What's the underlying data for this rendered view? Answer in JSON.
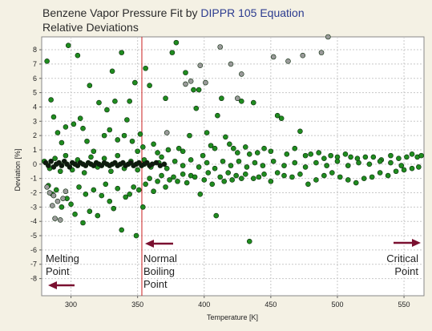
{
  "chart_data": {
    "type": "scatter",
    "title_part1": "Benzene Vapor Pressure Fit by ",
    "title_part2": "DIPPR 105 Equation",
    "subtitle": "Relative Deviations",
    "xlabel": "Temperature [K]",
    "ylabel": "Deviation [%]",
    "xlim": [
      278,
      565
    ],
    "ylim": [
      -9.2,
      8.9
    ],
    "xticks": [
      300,
      350,
      400,
      450,
      500,
      550
    ],
    "yticks": [
      8,
      7,
      6,
      5,
      4,
      3,
      2,
      1,
      0,
      -1,
      -2,
      -3,
      -4,
      -5,
      -6,
      -7,
      -8
    ],
    "grid": true,
    "vline_x": 353.2,
    "annotations": [
      {
        "lines": [
          "Melting",
          "Point"
        ],
        "arrow": "left"
      },
      {
        "lines": [
          "Normal",
          "Boiling",
          "Point"
        ],
        "arrow": "left"
      },
      {
        "lines": [
          "Critical",
          "Point"
        ],
        "arrow": "right"
      }
    ],
    "series": [
      {
        "color": "#1f8c1f",
        "points": [
          [
            282,
            7.2
          ],
          [
            285,
            4.5
          ],
          [
            287,
            3.3
          ],
          [
            290,
            2.2
          ],
          [
            293,
            1.5
          ],
          [
            296,
            2.6
          ],
          [
            298,
            8.3
          ],
          [
            302,
            2.8
          ],
          [
            305,
            7.6
          ],
          [
            307,
            3.2
          ],
          [
            309,
            2.5
          ],
          [
            312,
            1.6
          ],
          [
            314,
            5.5
          ],
          [
            317,
            0.9
          ],
          [
            321,
            4.3
          ],
          [
            325,
            2.0
          ],
          [
            327,
            3.8
          ],
          [
            329,
            2.4
          ],
          [
            331,
            6.5
          ],
          [
            333,
            4.4
          ],
          [
            335,
            1.7
          ],
          [
            338,
            7.8
          ],
          [
            340,
            2.0
          ],
          [
            342,
            3.1
          ],
          [
            344,
            4.4
          ],
          [
            346,
            1.6
          ],
          [
            348,
            5.7
          ],
          [
            350,
            0.9
          ],
          [
            352,
            2.1
          ],
          [
            354,
            1.2
          ],
          [
            356,
            6.7
          ],
          [
            359,
            5.5
          ],
          [
            362,
            1.4
          ],
          [
            365,
            0.8
          ],
          [
            368,
            0.5
          ],
          [
            371,
            4.6
          ],
          [
            373,
            1.0
          ],
          [
            376,
            7.8
          ],
          [
            379,
            8.5
          ],
          [
            381,
            1.1
          ],
          [
            384,
            0.9
          ],
          [
            386,
            6.4
          ],
          [
            389,
            2.0
          ],
          [
            392,
            5.2
          ],
          [
            394,
            3.9
          ],
          [
            396,
            5.2
          ],
          [
            399,
            0.6
          ],
          [
            402,
            2.2
          ],
          [
            405,
            1.3
          ],
          [
            408,
            1.1
          ],
          [
            410,
            3.4
          ],
          [
            413,
            4.6
          ],
          [
            416,
            1.9
          ],
          [
            419,
            1.4
          ],
          [
            422,
            1.1
          ],
          [
            425,
            0.8
          ],
          [
            428,
            4.4
          ],
          [
            431,
            1.2
          ],
          [
            434,
            0.7
          ],
          [
            437,
            4.3
          ],
          [
            440,
            0.8
          ],
          [
            445,
            1.1
          ],
          [
            450,
            0.9
          ],
          [
            455,
            3.4
          ],
          [
            458,
            3.2
          ],
          [
            462,
            0.7
          ],
          [
            468,
            1.1
          ],
          [
            472,
            2.3
          ],
          [
            476,
            0.6
          ],
          [
            480,
            0.7
          ],
          [
            486,
            0.8
          ],
          [
            490,
            0.4
          ],
          [
            495,
            0.6
          ],
          [
            500,
            0.5
          ],
          [
            506,
            0.7
          ],
          [
            510,
            0.5
          ],
          [
            515,
            0.4
          ],
          [
            521,
            0.5
          ],
          [
            527,
            0.5
          ],
          [
            533,
            0.3
          ],
          [
            540,
            0.6
          ],
          [
            546,
            0.4
          ],
          [
            552,
            0.5
          ],
          [
            556,
            0.7
          ],
          [
            560,
            0.5
          ],
          [
            563,
            0.6
          ],
          [
            283,
            -1.5
          ],
          [
            286,
            -2.1
          ],
          [
            289,
            -1.8
          ],
          [
            293,
            -3.0
          ],
          [
            297,
            -2.4
          ],
          [
            300,
            -2.8
          ],
          [
            303,
            -3.5
          ],
          [
            306,
            -1.6
          ],
          [
            309,
            -4.1
          ],
          [
            311,
            -2.1
          ],
          [
            314,
            -3.3
          ],
          [
            317,
            -1.8
          ],
          [
            320,
            -3.6
          ],
          [
            323,
            -2.2
          ],
          [
            326,
            -1.4
          ],
          [
            329,
            -2.6
          ],
          [
            332,
            -3.1
          ],
          [
            335,
            -1.7
          ],
          [
            338,
            -4.6
          ],
          [
            341,
            -2.3
          ],
          [
            344,
            -2.1
          ],
          [
            347,
            -1.6
          ],
          [
            349,
            -5.0
          ],
          [
            351,
            -1.8
          ],
          [
            354,
            -3.0
          ],
          [
            356,
            -1.4
          ],
          [
            359,
            -1.0
          ],
          [
            362,
            -1.9
          ],
          [
            365,
            -1.2
          ],
          [
            368,
            -0.8
          ],
          [
            371,
            -1.6
          ],
          [
            374,
            -1.1
          ],
          [
            377,
            -0.9
          ],
          [
            380,
            -1.2
          ],
          [
            384,
            -0.7
          ],
          [
            387,
            -1.3
          ],
          [
            390,
            -0.8
          ],
          [
            393,
            -0.9
          ],
          [
            397,
            -2.1
          ],
          [
            400,
            -1.1
          ],
          [
            403,
            -0.6
          ],
          [
            406,
            -1.4
          ],
          [
            409,
            -3.6
          ],
          [
            412,
            -0.9
          ],
          [
            415,
            -1.2
          ],
          [
            418,
            -0.6
          ],
          [
            421,
            -1.1
          ],
          [
            424,
            -0.8
          ],
          [
            428,
            -1.0
          ],
          [
            431,
            -0.7
          ],
          [
            434,
            -5.4
          ],
          [
            437,
            -1.0
          ],
          [
            441,
            -0.9
          ],
          [
            445,
            -0.7
          ],
          [
            450,
            -1.2
          ],
          [
            455,
            -0.6
          ],
          [
            460,
            -0.8
          ],
          [
            466,
            -0.9
          ],
          [
            472,
            -0.7
          ],
          [
            478,
            -1.4
          ],
          [
            484,
            -1.1
          ],
          [
            490,
            -0.8
          ],
          [
            496,
            -0.6
          ],
          [
            502,
            -0.9
          ],
          [
            508,
            -1.1
          ],
          [
            514,
            -1.3
          ],
          [
            520,
            -1.0
          ],
          [
            526,
            -0.9
          ],
          [
            532,
            -0.6
          ],
          [
            538,
            -0.8
          ],
          [
            544,
            -0.5
          ],
          [
            550,
            -0.4
          ],
          [
            556,
            -0.3
          ],
          [
            561,
            -0.2
          ],
          [
            280,
            0.2
          ],
          [
            284,
            -0.3
          ],
          [
            288,
            0.4
          ],
          [
            292,
            -0.5
          ],
          [
            296,
            0.6
          ],
          [
            301,
            -0.4
          ],
          [
            305,
            0.3
          ],
          [
            310,
            -0.6
          ],
          [
            315,
            0.5
          ],
          [
            320,
            -0.2
          ],
          [
            325,
            0.4
          ],
          [
            330,
            -0.5
          ],
          [
            335,
            0.6
          ],
          [
            340,
            -0.3
          ],
          [
            345,
            0.2
          ],
          [
            350,
            -0.4
          ],
          [
            355,
            0.3
          ],
          [
            360,
            -0.2
          ],
          [
            366,
            0.1
          ],
          [
            372,
            -0.3
          ],
          [
            378,
            0.2
          ],
          [
            384,
            -0.1
          ],
          [
            390,
            0.3
          ],
          [
            396,
            -0.2
          ],
          [
            402,
            0.1
          ],
          [
            408,
            -0.3
          ],
          [
            414,
            0.2
          ],
          [
            420,
            -0.1
          ],
          [
            426,
            0.2
          ],
          [
            432,
            -0.2
          ],
          [
            438,
            0.1
          ],
          [
            444,
            -0.1
          ],
          [
            452,
            0.2
          ],
          [
            460,
            -0.1
          ],
          [
            468,
            0.1
          ],
          [
            476,
            -0.2
          ],
          [
            484,
            0.1
          ],
          [
            492,
            -0.1
          ],
          [
            500,
            0.2
          ],
          [
            508,
            -0.1
          ],
          [
            516,
            0.1
          ],
          [
            524,
            0.0
          ],
          [
            532,
            0.2
          ],
          [
            540,
            0.1
          ],
          [
            548,
            -0.1
          ]
        ]
      },
      {
        "color": "#9a9a9a",
        "points": [
          [
            282,
            -1.6
          ],
          [
            284,
            -2.0
          ],
          [
            286,
            -2.9
          ],
          [
            288,
            -3.8
          ],
          [
            290,
            -2.6
          ],
          [
            292,
            -3.9
          ],
          [
            294,
            -2.4
          ],
          [
            296,
            -1.9
          ],
          [
            287,
            -2.2
          ],
          [
            372,
            2.2
          ],
          [
            386,
            5.6
          ],
          [
            390,
            5.8
          ],
          [
            397,
            6.9
          ],
          [
            401,
            5.7
          ],
          [
            412,
            8.2
          ],
          [
            420,
            7.0
          ],
          [
            425,
            4.6
          ],
          [
            428,
            6.3
          ],
          [
            452,
            7.5
          ],
          [
            463,
            7.2
          ],
          [
            474,
            7.6
          ],
          [
            488,
            7.8
          ],
          [
            493,
            8.9
          ]
        ]
      },
      {
        "color": "#101810",
        "points": [
          [
            281,
            0.1
          ],
          [
            283,
            -0.1
          ],
          [
            285,
            0.2
          ],
          [
            287,
            -0.2
          ],
          [
            289,
            0.0
          ],
          [
            291,
            0.1
          ],
          [
            293,
            -0.1
          ],
          [
            295,
            0.2
          ],
          [
            297,
            0.0
          ],
          [
            299,
            -0.2
          ],
          [
            301,
            0.1
          ],
          [
            303,
            0.0
          ],
          [
            305,
            -0.1
          ],
          [
            307,
            0.1
          ],
          [
            309,
            0.0
          ],
          [
            311,
            -0.1
          ],
          [
            313,
            0.1
          ],
          [
            315,
            0.0
          ],
          [
            317,
            -0.1
          ],
          [
            319,
            0.1
          ],
          [
            321,
            0.0
          ],
          [
            323,
            -0.1
          ],
          [
            325,
            0.1
          ],
          [
            327,
            0.0
          ],
          [
            329,
            -0.1
          ],
          [
            331,
            0.0
          ],
          [
            333,
            0.1
          ],
          [
            335,
            -0.1
          ],
          [
            337,
            0.0
          ],
          [
            339,
            0.1
          ],
          [
            341,
            -0.1
          ],
          [
            343,
            0.0
          ],
          [
            345,
            0.1
          ],
          [
            347,
            -0.1
          ],
          [
            349,
            0.0
          ],
          [
            351,
            0.1
          ],
          [
            353,
            -0.1
          ],
          [
            355,
            0.0
          ],
          [
            357,
            0.1
          ],
          [
            359,
            -0.1
          ],
          [
            361,
            0.0
          ],
          [
            364,
            0.1
          ],
          [
            367,
            -0.1
          ],
          [
            370,
            0.0
          ]
        ]
      }
    ]
  }
}
